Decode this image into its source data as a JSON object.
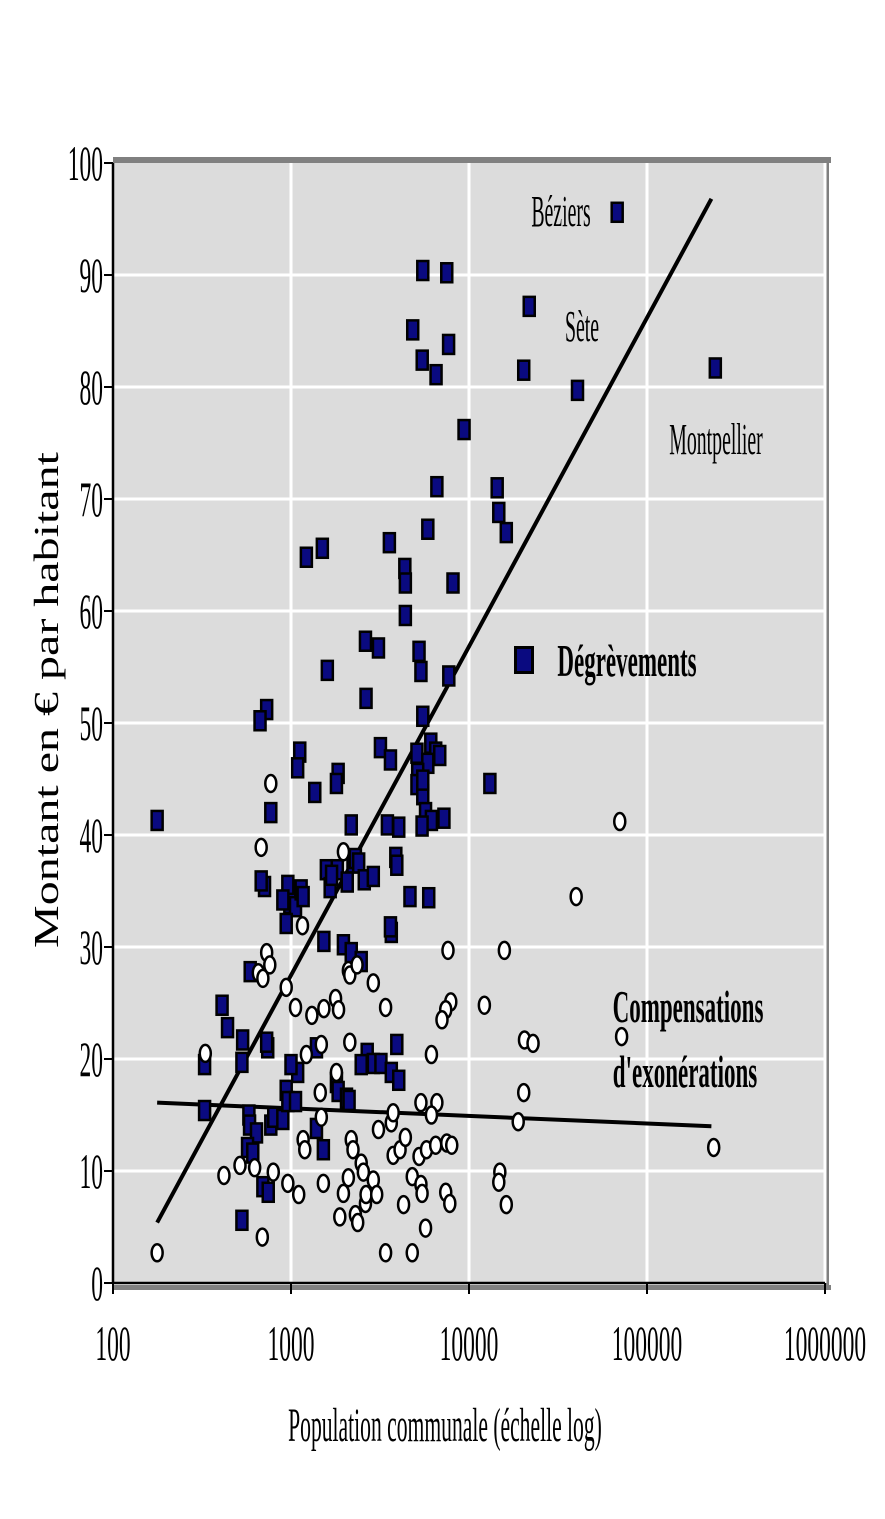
{
  "chart_data": {
    "type": "scatter",
    "title": "",
    "xlabel": "Population communale (échelle log)",
    "ylabel": "Montant en € par habitant",
    "x_scale": "log",
    "xlim": [
      100,
      1000000
    ],
    "ylim": [
      0,
      100
    ],
    "grid": "on",
    "x_ticks": [
      100,
      1000,
      10000,
      100000,
      1000000
    ],
    "x_tick_labels": [
      "100",
      "1000",
      "10000",
      "100000",
      "1000000"
    ],
    "y_ticks": [
      0,
      10,
      20,
      30,
      40,
      50,
      60,
      70,
      80,
      90,
      100
    ],
    "y_tick_labels": [
      "0",
      "10",
      "20",
      "30",
      "40",
      "50",
      "60",
      "70",
      "80",
      "90",
      "100"
    ],
    "colors": {
      "plot_background": "#dcdcdc",
      "gridline": "#ffffff",
      "axis": "#000000",
      "shadow": "#808080",
      "degrevements_fill": "#0a0a80",
      "compensations_fill": "#ffffff",
      "marker_stroke": "#000000",
      "trendline": "#000000"
    },
    "series": [
      {
        "name": "Dégrèvements",
        "marker": "filled-square",
        "color": "#0a0a80",
        "points": [
          [
            68000,
            95.6
          ],
          [
            5500,
            90.4
          ],
          [
            7500,
            90.2
          ],
          [
            21800,
            87.2
          ],
          [
            40700,
            79.7
          ],
          [
            242000,
            81.7
          ],
          [
            4830,
            85.1
          ],
          [
            7680,
            83.8
          ],
          [
            5460,
            82.4
          ],
          [
            6530,
            81.1
          ],
          [
            20300,
            81.5
          ],
          [
            9380,
            76.2
          ],
          [
            6600,
            71.1
          ],
          [
            14400,
            71.0
          ],
          [
            14700,
            68.8
          ],
          [
            16200,
            67.0
          ],
          [
            5870,
            67.3
          ],
          [
            3570,
            66.1
          ],
          [
            1220,
            64.8
          ],
          [
            1500,
            65.6
          ],
          [
            4360,
            63.8
          ],
          [
            4390,
            62.5
          ],
          [
            8130,
            62.5
          ],
          [
            4390,
            59.6
          ],
          [
            2620,
            57.3
          ],
          [
            3100,
            56.7
          ],
          [
            5240,
            56.4
          ],
          [
            5370,
            54.6
          ],
          [
            1600,
            54.7
          ],
          [
            7700,
            54.2
          ],
          [
            2640,
            52.2
          ],
          [
            730,
            51.2
          ],
          [
            670,
            50.2
          ],
          [
            5500,
            50.6
          ],
          [
            6100,
            48.2
          ],
          [
            6500,
            47.4
          ],
          [
            6850,
            47.1
          ],
          [
            3180,
            47.8
          ],
          [
            3620,
            46.7
          ],
          [
            5100,
            47.3
          ],
          [
            5870,
            46.4
          ],
          [
            5150,
            45.5
          ],
          [
            1120,
            47.4
          ],
          [
            1090,
            46.0
          ],
          [
            1840,
            45.5
          ],
          [
            177,
            41.3
          ],
          [
            1360,
            43.8
          ],
          [
            1800,
            44.6
          ],
          [
            770,
            42.0
          ],
          [
            2180,
            40.9
          ],
          [
            5100,
            44.5
          ],
          [
            5500,
            43.6
          ],
          [
            5700,
            42.0
          ],
          [
            6150,
            41.3
          ],
          [
            7230,
            41.5
          ],
          [
            3480,
            40.9
          ],
          [
            4030,
            40.7
          ],
          [
            2230,
            37.5
          ],
          [
            2300,
            37.9
          ],
          [
            2400,
            37.5
          ],
          [
            1580,
            36.9
          ],
          [
            1820,
            36.9
          ],
          [
            2070,
            35.8
          ],
          [
            2580,
            36.0
          ],
          [
            2900,
            36.3
          ],
          [
            3880,
            38.0
          ],
          [
            3930,
            37.3
          ],
          [
            4660,
            34.5
          ],
          [
            5940,
            34.4
          ],
          [
            710,
            35.4
          ],
          [
            680,
            35.9
          ],
          [
            960,
            35.5
          ],
          [
            985,
            33.9
          ],
          [
            900,
            34.2
          ],
          [
            1060,
            33.6
          ],
          [
            1140,
            35.1
          ],
          [
            1170,
            34.5
          ],
          [
            940,
            32.1
          ],
          [
            1660,
            35.3
          ],
          [
            1690,
            36.4
          ],
          [
            5450,
            40.8
          ],
          [
            13100,
            44.6
          ],
          [
            5500,
            44.9
          ],
          [
            3660,
            31.3
          ],
          [
            1530,
            30.5
          ],
          [
            1970,
            30.2
          ],
          [
            2180,
            29.5
          ],
          [
            2480,
            28.7
          ],
          [
            3620,
            31.8
          ],
          [
            410,
            24.8
          ],
          [
            440,
            22.8
          ],
          [
            590,
            27.8
          ],
          [
            327,
            19.5
          ],
          [
            530,
            19.7
          ],
          [
            740,
            21.0
          ],
          [
            535,
            21.7
          ],
          [
            730,
            21.5
          ],
          [
            327,
            15.4
          ],
          [
            580,
            15.0
          ],
          [
            585,
            14.1
          ],
          [
            640,
            13.4
          ],
          [
            770,
            14.1
          ],
          [
            800,
            14.8
          ],
          [
            900,
            14.6
          ],
          [
            940,
            17.2
          ],
          [
            960,
            16.2
          ],
          [
            1060,
            16.2
          ],
          [
            1090,
            18.8
          ],
          [
            1000,
            19.5
          ],
          [
            1390,
            21.0
          ],
          [
            1800,
            17.9
          ],
          [
            1840,
            17.1
          ],
          [
            2050,
            16.5
          ],
          [
            2120,
            16.3
          ],
          [
            2680,
            20.5
          ],
          [
            2480,
            19.5
          ],
          [
            2900,
            19.6
          ],
          [
            3200,
            19.6
          ],
          [
            3660,
            18.8
          ],
          [
            3930,
            21.3
          ],
          [
            4030,
            18.1
          ],
          [
            1390,
            13.8
          ],
          [
            1520,
            11.9
          ],
          [
            570,
            12.1
          ],
          [
            610,
            11.6
          ],
          [
            695,
            8.6
          ],
          [
            745,
            8.1
          ],
          [
            530,
            5.6
          ]
        ]
      },
      {
        "name": "Compensations d'exonérations",
        "marker": "open-ellipse",
        "color": "#ffffff",
        "points": [
          [
            770,
            44.6
          ],
          [
            680,
            38.9
          ],
          [
            1970,
            38.5
          ],
          [
            1160,
            31.9
          ],
          [
            730,
            29.5
          ],
          [
            760,
            28.4
          ],
          [
            655,
            27.7
          ],
          [
            695,
            27.2
          ],
          [
            940,
            26.4
          ],
          [
            1060,
            24.6
          ],
          [
            1310,
            23.9
          ],
          [
            1530,
            24.5
          ],
          [
            1780,
            25.4
          ],
          [
            1850,
            24.4
          ],
          [
            2100,
            27.9
          ],
          [
            2140,
            27.5
          ],
          [
            2350,
            28.4
          ],
          [
            2900,
            26.8
          ],
          [
            3400,
            24.6
          ],
          [
            7620,
            29.7
          ],
          [
            7900,
            25.1
          ],
          [
            7400,
            24.4
          ],
          [
            7050,
            23.5
          ],
          [
            12200,
            24.8
          ],
          [
            15800,
            29.7
          ],
          [
            70300,
            41.2
          ],
          [
            40000,
            34.5
          ],
          [
            237000,
            12.1
          ],
          [
            20500,
            21.7
          ],
          [
            177,
            2.7
          ],
          [
            517,
            10.5
          ],
          [
            330,
            20.5
          ],
          [
            420,
            9.6
          ],
          [
            625,
            10.3
          ],
          [
            690,
            4.1
          ],
          [
            795,
            9.9
          ],
          [
            960,
            8.9
          ],
          [
            1105,
            7.9
          ],
          [
            1170,
            12.8
          ],
          [
            1195,
            11.9
          ],
          [
            1220,
            20.4
          ],
          [
            1460,
            17.0
          ],
          [
            1480,
            14.8
          ],
          [
            1520,
            8.9
          ],
          [
            1800,
            18.8
          ],
          [
            1880,
            5.9
          ],
          [
            1970,
            8.0
          ],
          [
            2100,
            9.4
          ],
          [
            2180,
            12.8
          ],
          [
            2230,
            11.9
          ],
          [
            2300,
            6.1
          ],
          [
            2370,
            5.4
          ],
          [
            2480,
            10.7
          ],
          [
            2550,
            9.9
          ],
          [
            2620,
            7.1
          ],
          [
            2640,
            7.9
          ],
          [
            2900,
            9.2
          ],
          [
            3030,
            7.9
          ],
          [
            3100,
            13.7
          ],
          [
            3400,
            2.7
          ],
          [
            3660,
            14.3
          ],
          [
            3750,
            11.4
          ],
          [
            4100,
            11.9
          ],
          [
            4290,
            7.0
          ],
          [
            4390,
            13.0
          ],
          [
            4800,
            9.5
          ],
          [
            4800,
            2.7
          ],
          [
            5240,
            11.3
          ],
          [
            5370,
            8.8
          ],
          [
            5450,
            8.0
          ],
          [
            5700,
            4.9
          ],
          [
            5770,
            11.9
          ],
          [
            6150,
            20.4
          ],
          [
            6500,
            12.3
          ],
          [
            6600,
            16.1
          ],
          [
            7400,
            8.1
          ],
          [
            7500,
            12.5
          ],
          [
            7800,
            7.1
          ],
          [
            8000,
            12.3
          ],
          [
            14900,
            9.9
          ],
          [
            14700,
            9.0
          ],
          [
            16200,
            7.0
          ],
          [
            18900,
            14.4
          ],
          [
            20300,
            17.0
          ],
          [
            22900,
            21.4
          ],
          [
            5370,
            16.1
          ],
          [
            3750,
            15.2
          ],
          [
            6150,
            15.0
          ],
          [
            1480,
            21.3
          ],
          [
            2140,
            21.5
          ],
          [
            72000,
            22.0
          ]
        ]
      }
    ],
    "trendlines": [
      {
        "series": "Dégrèvements",
        "x1": 177,
        "y1": 5.4,
        "x2": 230000,
        "y2": 96.8
      },
      {
        "series": "Compensations d'exonérations",
        "x1": 177,
        "y1": 16.1,
        "x2": 230000,
        "y2": 14.0
      }
    ],
    "annotations": [
      {
        "text": "Béziers",
        "x": 32700,
        "y": 95.6,
        "style": "city"
      },
      {
        "text": "Sète",
        "x": 43000,
        "y": 85.4,
        "style": "city"
      },
      {
        "text": "Montpellier",
        "x": 245000,
        "y": 75.3,
        "style": "city"
      },
      {
        "text": "Dégrèvements",
        "x": 77100,
        "y": 55.5,
        "style": "series-bold"
      },
      {
        "type": "marker",
        "x": 20500,
        "y": 55.6
      },
      {
        "text": "Compensations",
        "x": 170000,
        "y": 24.6,
        "style": "series-bold"
      },
      {
        "text": "d'exonérations",
        "x": 163800,
        "y": 18.8,
        "style": "series-bold"
      }
    ],
    "legend_position": "inline-annotations"
  }
}
